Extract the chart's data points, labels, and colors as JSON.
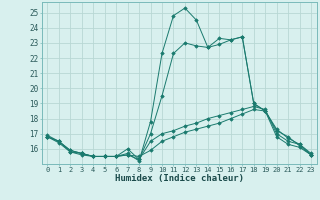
{
  "xlabel": "Humidex (Indice chaleur)",
  "background_color": "#d8f0ee",
  "grid_color": "#b8d8d4",
  "line_color": "#1a7a6e",
  "xlim": [
    -0.5,
    23.5
  ],
  "ylim": [
    15.0,
    25.7
  ],
  "xticks": [
    0,
    1,
    2,
    3,
    4,
    5,
    6,
    7,
    8,
    9,
    10,
    11,
    12,
    13,
    14,
    15,
    16,
    17,
    18,
    19,
    20,
    21,
    22,
    23
  ],
  "yticks": [
    16,
    17,
    18,
    19,
    20,
    21,
    22,
    23,
    24,
    25
  ],
  "line1_x": [
    0,
    1,
    2,
    3,
    4,
    5,
    6,
    7,
    8,
    9,
    10,
    11,
    12,
    13,
    14,
    15,
    16,
    17,
    18,
    19,
    20,
    21,
    22,
    23
  ],
  "line1_y": [
    16.8,
    16.5,
    15.9,
    15.7,
    15.5,
    15.5,
    15.5,
    16.0,
    15.3,
    16.5,
    17.0,
    17.2,
    17.5,
    17.7,
    18.0,
    18.2,
    18.4,
    18.6,
    18.8,
    18.6,
    17.0,
    16.5,
    16.3,
    15.7
  ],
  "line2_x": [
    0,
    1,
    2,
    3,
    4,
    5,
    6,
    7,
    8,
    9,
    10,
    11,
    12,
    13,
    14,
    15,
    16,
    17,
    18,
    19,
    20,
    21,
    22,
    23
  ],
  "line2_y": [
    16.8,
    16.5,
    15.9,
    15.7,
    15.5,
    15.5,
    15.5,
    15.6,
    15.5,
    15.9,
    16.5,
    16.8,
    17.1,
    17.3,
    17.5,
    17.7,
    18.0,
    18.3,
    18.6,
    18.5,
    16.8,
    16.3,
    16.1,
    15.6
  ],
  "line3_x": [
    0,
    1,
    2,
    3,
    4,
    5,
    6,
    7,
    8,
    9,
    10,
    11,
    12,
    13,
    14,
    15,
    16,
    17,
    18,
    19,
    20,
    21,
    22,
    23
  ],
  "line3_y": [
    16.9,
    16.5,
    15.8,
    15.6,
    15.5,
    15.5,
    15.5,
    15.6,
    15.3,
    17.0,
    19.5,
    22.3,
    23.0,
    22.8,
    22.7,
    23.3,
    23.2,
    23.4,
    19.0,
    18.5,
    17.3,
    16.7,
    16.3,
    15.6
  ],
  "line4_x": [
    0,
    1,
    2,
    3,
    4,
    5,
    6,
    7,
    8,
    9,
    10,
    11,
    12,
    13,
    14,
    15,
    16,
    17,
    18,
    19,
    20,
    21,
    22,
    23
  ],
  "line4_y": [
    16.8,
    16.4,
    15.8,
    15.7,
    15.5,
    15.5,
    15.5,
    15.7,
    15.2,
    17.8,
    22.3,
    24.8,
    25.3,
    24.5,
    22.7,
    22.9,
    23.2,
    23.4,
    19.0,
    18.5,
    17.2,
    16.8,
    16.2,
    15.6
  ]
}
